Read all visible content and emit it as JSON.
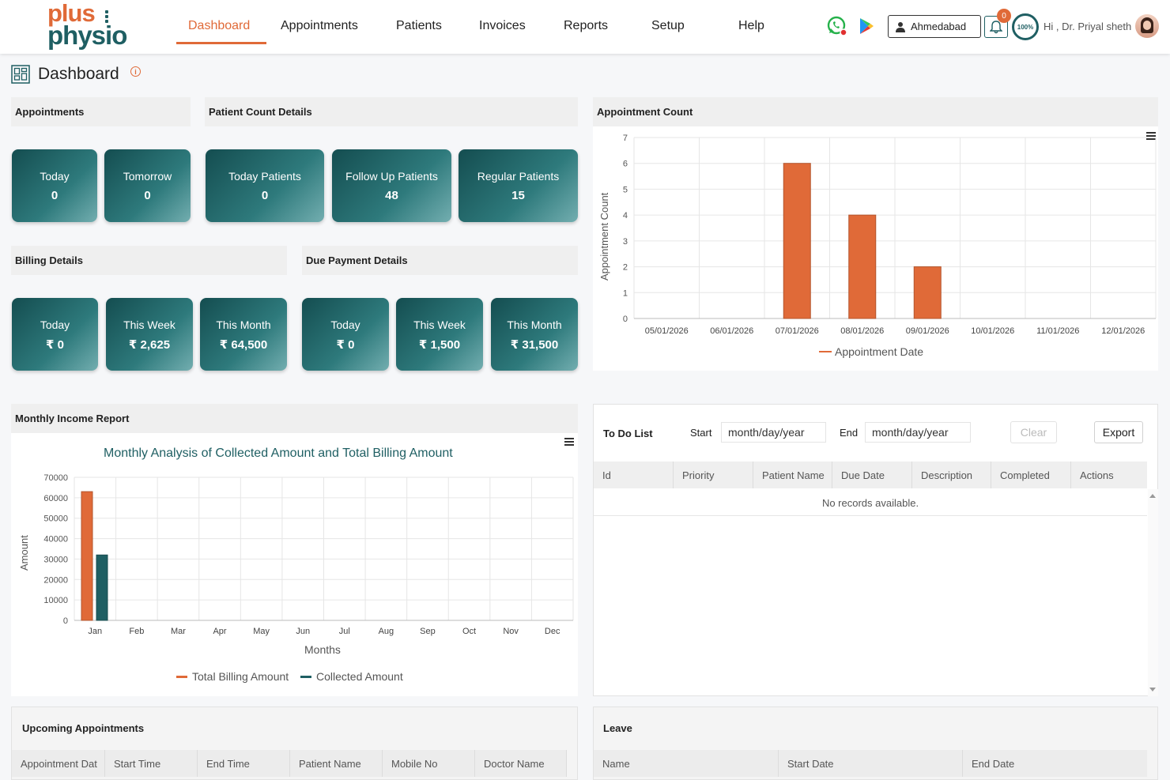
{
  "brand": {
    "line1": "plus",
    "line2": "physio"
  },
  "nav": {
    "items": [
      {
        "label": "Dashboard",
        "active": true
      },
      {
        "label": "Appointments"
      },
      {
        "label": "Patients"
      },
      {
        "label": "Invoices"
      },
      {
        "label": "Reports"
      },
      {
        "label": "Setup"
      },
      {
        "label": "Help"
      }
    ],
    "location": "Ahmedabad",
    "notifications": "0",
    "profile_progress": "100%",
    "greeting": "Hi , Dr. Priyal sheth"
  },
  "page": {
    "title": "Dashboard",
    "info": "i"
  },
  "appointments": {
    "title": "Appointments",
    "cards": [
      {
        "label": "Today",
        "value": "0"
      },
      {
        "label": "Tomorrow",
        "value": "0"
      }
    ]
  },
  "patient_count": {
    "title": "Patient Count Details",
    "cards": [
      {
        "label": "Today Patients",
        "value": "0"
      },
      {
        "label": "Follow Up Patients",
        "value": "48"
      },
      {
        "label": "Regular Patients",
        "value": "15"
      }
    ]
  },
  "billing": {
    "title": "Billing Details",
    "cards": [
      {
        "label": "Today",
        "value": "₹ 0"
      },
      {
        "label": "This Week",
        "value": "₹ 2,625"
      },
      {
        "label": "This Month",
        "value": "₹ 64,500"
      }
    ]
  },
  "due_payment": {
    "title": "Due Payment Details",
    "cards": [
      {
        "label": "Today",
        "value": "₹ 0"
      },
      {
        "label": "This Week",
        "value": "₹ 1,500"
      },
      {
        "label": "This Month",
        "value": "₹ 31,500"
      }
    ]
  },
  "income_report": {
    "title": "Monthly Income Report"
  },
  "todo": {
    "title": "To Do List",
    "start_label": "Start",
    "start_placeholder": "month/day/year",
    "end_label": "End",
    "end_placeholder": "month/day/year",
    "clear_label": "Clear",
    "export_label": "Export",
    "columns": [
      "Id",
      "Priority",
      "Patient Name",
      "Due Date",
      "Description",
      "Completed",
      "Actions"
    ],
    "empty": "No records available."
  },
  "upcoming": {
    "title": "Upcoming Appointments",
    "columns": [
      "Appointment Dat",
      "Start Time",
      "End Time",
      "Patient Name",
      "Mobile No",
      "Doctor Name"
    ]
  },
  "leave": {
    "title": "Leave",
    "columns": [
      "Name",
      "Start Date",
      "End Date"
    ]
  },
  "colors": {
    "accent": "#e06a38",
    "primary": "#1f5f63"
  },
  "chart_data": [
    {
      "type": "bar",
      "title": "",
      "section": "Appointment Count",
      "categories": [
        "05/01/2026",
        "06/01/2026",
        "07/01/2026",
        "08/01/2026",
        "09/01/2026",
        "10/01/2026",
        "11/01/2026",
        "12/01/2026"
      ],
      "series": [
        {
          "name": "Appointment Date",
          "color": "#e06a38",
          "values": [
            0,
            0,
            6,
            4,
            2,
            0,
            0,
            0
          ]
        }
      ],
      "xlabel": "",
      "ylabel": "Appointment Count",
      "ylim": [
        0,
        7
      ],
      "yticks": [
        0,
        1,
        2,
        3,
        4,
        5,
        6,
        7
      ],
      "grid": true,
      "legend": "bottom"
    },
    {
      "type": "bar",
      "title": "Monthly Analysis of Collected Amount and Total Billing Amount",
      "categories": [
        "Jan",
        "Feb",
        "Mar",
        "Apr",
        "May",
        "Jun",
        "Jul",
        "Aug",
        "Sep",
        "Oct",
        "Nov",
        "Dec"
      ],
      "series": [
        {
          "name": "Total Billing Amount",
          "color": "#e06a38",
          "values": [
            63000,
            0,
            0,
            0,
            0,
            0,
            0,
            0,
            0,
            0,
            0,
            0
          ]
        },
        {
          "name": "Collected Amount",
          "color": "#1f5f63",
          "values": [
            32000,
            0,
            0,
            0,
            0,
            0,
            0,
            0,
            0,
            0,
            0,
            0
          ]
        }
      ],
      "xlabel": "Months",
      "ylabel": "Amount",
      "ylim": [
        0,
        70000
      ],
      "yticks": [
        0,
        10000,
        20000,
        30000,
        40000,
        50000,
        60000,
        70000
      ],
      "grid": true,
      "legend": "bottom"
    }
  ]
}
